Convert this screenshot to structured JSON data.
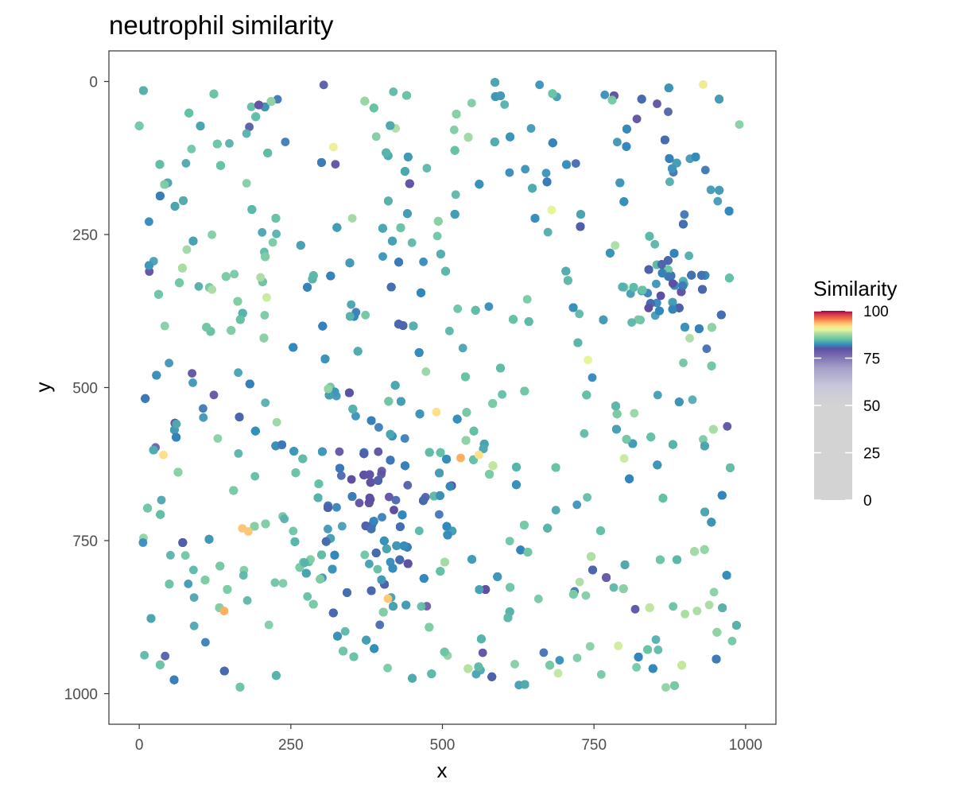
{
  "chart_data": {
    "type": "scatter",
    "title": "neutrophil similarity",
    "xlabel": "x",
    "ylabel": "y",
    "xlim": [
      -50,
      1050
    ],
    "ylim": [
      -50,
      1050
    ],
    "y_reversed": true,
    "grid": false,
    "xticks": [
      0,
      250,
      500,
      750,
      1000
    ],
    "yticks": [
      0,
      250,
      500,
      750,
      1000
    ],
    "xtick_labels": [
      "0",
      "250",
      "500",
      "750",
      "1000"
    ],
    "ytick_labels": [
      "0",
      "250",
      "500",
      "750",
      "1000"
    ],
    "legend": {
      "title": "Similarity",
      "placement": "right",
      "range": [
        0,
        100
      ],
      "ticks": [
        0,
        25,
        50,
        75,
        100
      ],
      "tick_labels": [
        "0",
        "25",
        "50",
        "75",
        "100"
      ],
      "colors": [
        "#d3d3d3",
        "#d3d3d3",
        "#c8c8da",
        "#a59fc8",
        "#5e4fa2",
        "#3288bd",
        "#66c2a5",
        "#abdda4",
        "#e6f598",
        "#fee08b",
        "#fdae61",
        "#f46d43",
        "#d53e4f",
        "#9e0142"
      ],
      "color_stops": [
        0,
        50,
        60,
        70,
        80,
        82,
        85,
        88,
        90,
        92,
        94,
        96,
        98,
        100
      ]
    },
    "point_count_approx": 6000,
    "series": [
      {
        "points": [
          {
            "x": 860,
            "y": 350,
            "value": 80
          },
          {
            "x": 880,
            "y": 330,
            "value": 80
          },
          {
            "x": 840,
            "y": 370,
            "value": 80
          },
          {
            "x": 380,
            "y": 680,
            "value": 80
          },
          {
            "x": 350,
            "y": 650,
            "value": 80
          },
          {
            "x": 420,
            "y": 700,
            "value": 80
          },
          {
            "x": 40,
            "y": 610,
            "value": 92
          },
          {
            "x": 170,
            "y": 730,
            "value": 93
          },
          {
            "x": 180,
            "y": 735,
            "value": 93
          },
          {
            "x": 140,
            "y": 865,
            "value": 94
          },
          {
            "x": 530,
            "y": 615,
            "value": 94
          },
          {
            "x": 490,
            "y": 540,
            "value": 92
          },
          {
            "x": 560,
            "y": 610,
            "value": 92
          },
          {
            "x": 930,
            "y": 5,
            "value": 91
          },
          {
            "x": 410,
            "y": 845,
            "value": 93
          },
          {
            "x": 920,
            "y": 865,
            "value": 88
          },
          {
            "x": 900,
            "y": 870,
            "value": 88
          },
          {
            "x": 940,
            "y": 855,
            "value": 88
          },
          {
            "x": 200,
            "y": 320,
            "value": 88
          },
          {
            "x": 120,
            "y": 340,
            "value": 88
          },
          {
            "x": 680,
            "y": 210,
            "value": 90
          },
          {
            "x": 740,
            "y": 455,
            "value": 90
          }
        ]
      }
    ]
  }
}
